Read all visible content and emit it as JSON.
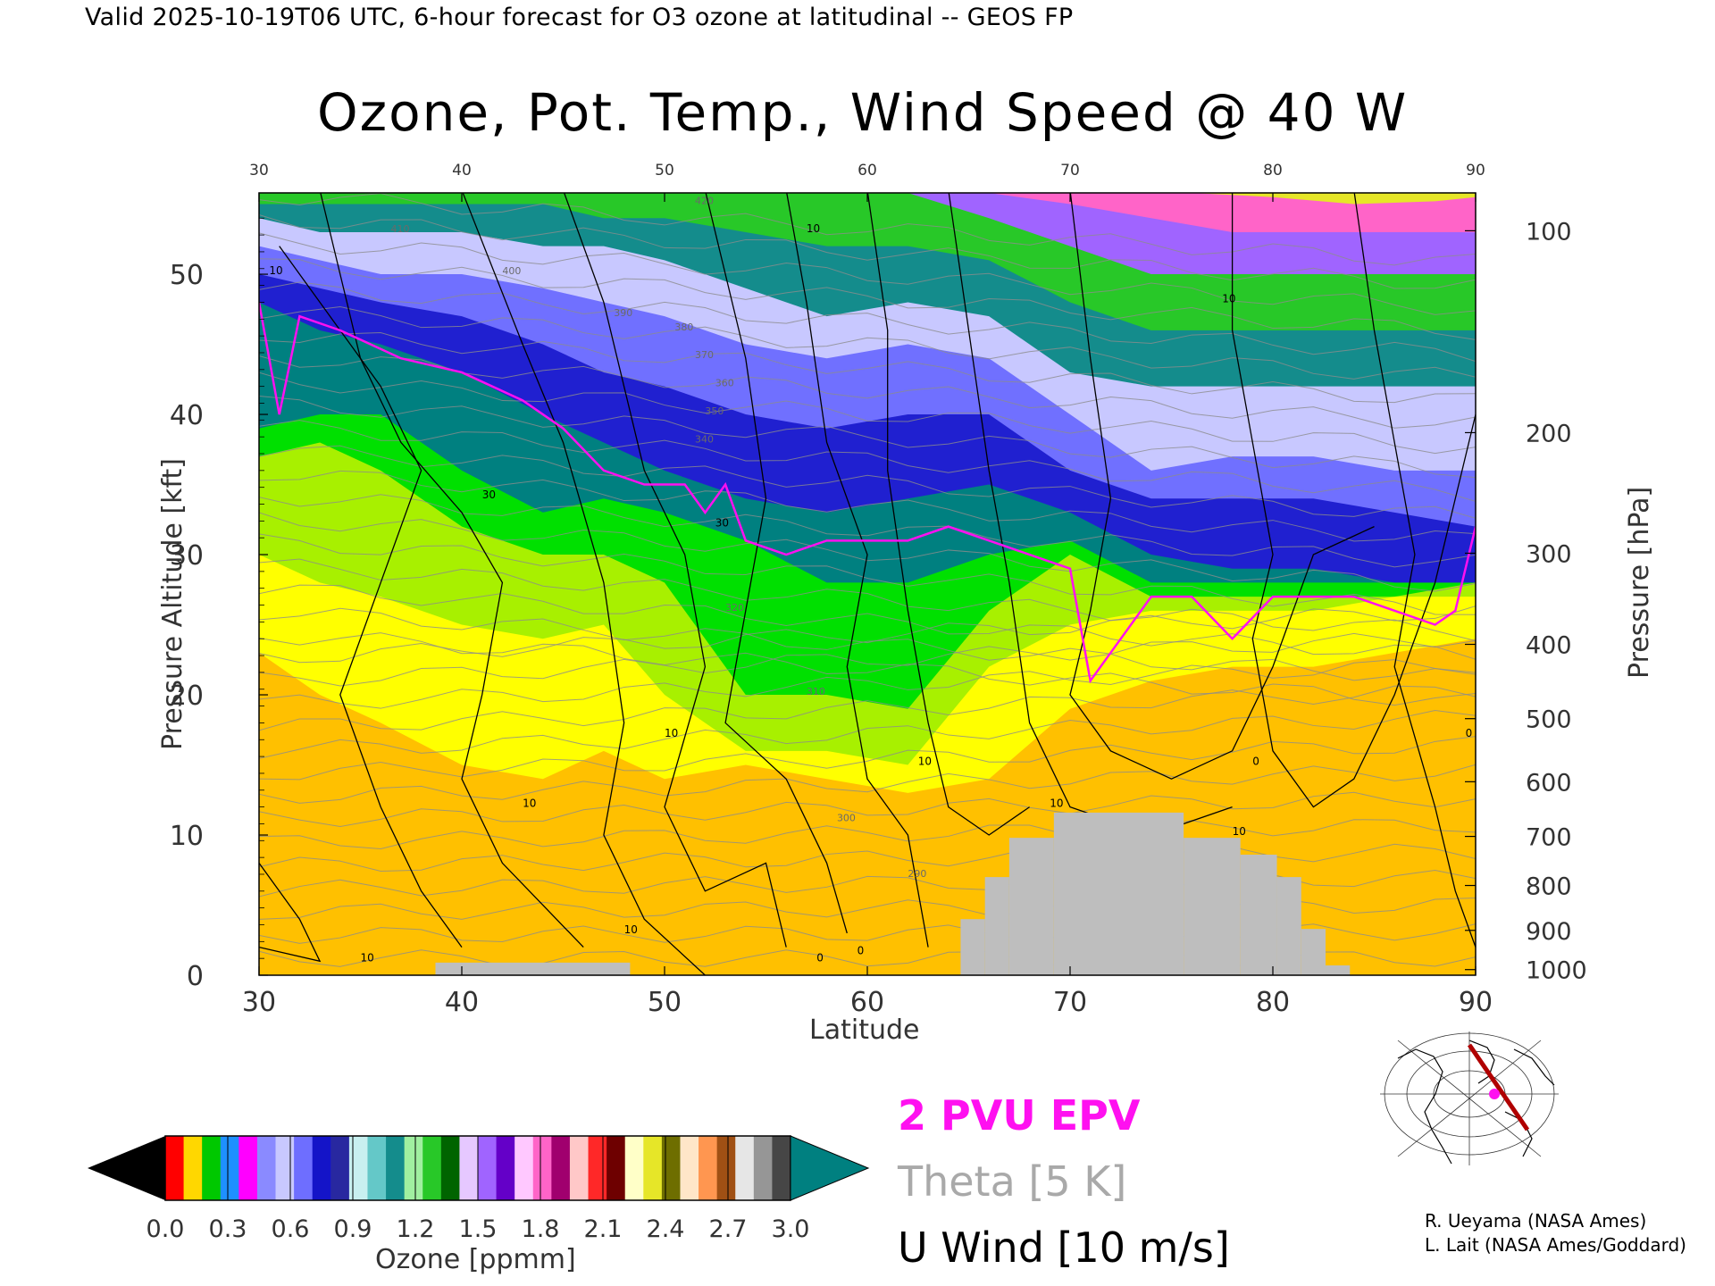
{
  "header": "Valid 2025-10-19T06 UTC, 6-hour forecast for O3 ozone at latitudinal -- GEOS FP",
  "credits": [
    "R. Ueyama (NASA Ames)",
    "L. Lait (NASA Ames/Goddard)"
  ],
  "legend": {
    "pvu": "2 PVU EPV",
    "theta": "Theta [5 K]",
    "uwind": "U Wind [10 m/s]",
    "pvu_color": "#ff10f0",
    "theta_color": "#a9a9a9",
    "uwind_color": "#000000"
  },
  "colorbar": {
    "label": "Ozone [ppmm]",
    "ticks": [
      "0.0",
      "0.3",
      "0.6",
      "0.9",
      "1.2",
      "1.5",
      "1.8",
      "2.1",
      "2.4",
      "2.7",
      "3.0"
    ],
    "range": [
      0,
      3.0
    ],
    "extend_low_color": "#000000",
    "extend_high_color": "#008080",
    "bands": [
      "#ff0000",
      "#ffd700",
      "#00c800",
      "#1e90ff",
      "#ff00ff",
      "#8a8aff",
      "#c8c8ff",
      "#6e6eff",
      "#1414c8",
      "#2828a0",
      "#c8f0f0",
      "#64c8c8",
      "#148c8c",
      "#a0f0a0",
      "#28c828",
      "#006400",
      "#e6c8ff",
      "#a064ff",
      "#6400c8",
      "#ffc8ff",
      "#ff64c8",
      "#a0006e",
      "#ffc8c8",
      "#ff2828",
      "#6e0000",
      "#ffffc8",
      "#e6e628",
      "#6e6e00",
      "#ffe6c8",
      "#ff9650",
      "#a05014",
      "#e6e6e6",
      "#969696",
      "#464646"
    ]
  },
  "chart_data": {
    "type": "heatmap",
    "title": "Ozone, Pot. Temp., Wind Speed @ 40 W",
    "xlabel": "Latitude",
    "ylabel": "Pressure Altitude [kft]",
    "y2label": "Pressure [hPa]",
    "xlim": [
      30,
      90
    ],
    "ylim": [
      0,
      55.8
    ],
    "x_ticks": [
      30,
      40,
      50,
      60,
      70,
      80,
      90
    ],
    "y_ticks": [
      0,
      10,
      20,
      30,
      40,
      50
    ],
    "pressure_ticks": [
      {
        "label": "100",
        "kft": 53.1
      },
      {
        "label": "200",
        "kft": 38.7
      },
      {
        "label": "300",
        "kft": 30.1
      },
      {
        "label": "400",
        "kft": 23.6
      },
      {
        "label": "500",
        "kft": 18.3
      },
      {
        "label": "600",
        "kft": 13.8
      },
      {
        "label": "700",
        "kft": 9.9
      },
      {
        "label": "800",
        "kft": 6.4
      },
      {
        "label": "900",
        "kft": 3.2
      },
      {
        "label": "1000",
        "kft": 0.4
      }
    ],
    "ozone_layers": [
      {
        "color": "#ffc000",
        "top": [
          [
            30,
            14
          ],
          [
            33,
            12
          ],
          [
            36,
            10
          ],
          [
            40,
            9
          ],
          [
            44,
            9
          ],
          [
            47,
            11
          ],
          [
            50,
            10
          ],
          [
            54,
            11
          ],
          [
            58,
            9
          ],
          [
            62,
            8
          ],
          [
            66,
            9
          ],
          [
            70,
            11
          ],
          [
            74,
            13
          ],
          [
            78,
            15
          ],
          [
            82,
            12
          ],
          [
            86,
            12
          ],
          [
            90,
            13
          ]
        ]
      },
      {
        "color": "#ffff00",
        "top": [
          [
            30,
            23
          ],
          [
            33,
            20
          ],
          [
            36,
            18
          ],
          [
            40,
            15
          ],
          [
            44,
            14
          ],
          [
            47,
            16
          ],
          [
            50,
            14
          ],
          [
            54,
            15
          ],
          [
            58,
            14
          ],
          [
            62,
            13
          ],
          [
            66,
            14
          ],
          [
            70,
            19
          ],
          [
            74,
            21
          ],
          [
            78,
            22
          ],
          [
            82,
            22
          ],
          [
            86,
            23
          ],
          [
            90,
            24
          ]
        ]
      },
      {
        "color": "#a8f000",
        "top": [
          [
            30,
            30
          ],
          [
            33,
            28
          ],
          [
            36,
            27
          ],
          [
            40,
            25
          ],
          [
            44,
            24
          ],
          [
            47,
            25
          ],
          [
            50,
            20
          ],
          [
            54,
            16
          ],
          [
            58,
            16
          ],
          [
            62,
            15
          ],
          [
            66,
            22
          ],
          [
            70,
            25
          ],
          [
            74,
            26
          ],
          [
            78,
            26
          ],
          [
            82,
            26
          ],
          [
            86,
            27
          ],
          [
            90,
            27
          ]
        ]
      },
      {
        "color": "#00e000",
        "top": [
          [
            30,
            37
          ],
          [
            33,
            38
          ],
          [
            36,
            36
          ],
          [
            40,
            32
          ],
          [
            44,
            30
          ],
          [
            47,
            30
          ],
          [
            50,
            28
          ],
          [
            54,
            20
          ],
          [
            58,
            20
          ],
          [
            62,
            19
          ],
          [
            66,
            26
          ],
          [
            70,
            30
          ],
          [
            74,
            27
          ],
          [
            78,
            27
          ],
          [
            82,
            27
          ],
          [
            86,
            27
          ],
          [
            90,
            28
          ]
        ]
      },
      {
        "color": "#008080",
        "top": [
          [
            30,
            39
          ],
          [
            33,
            40
          ],
          [
            36,
            40
          ],
          [
            40,
            36
          ],
          [
            44,
            33
          ],
          [
            47,
            34
          ],
          [
            50,
            33
          ],
          [
            54,
            31
          ],
          [
            58,
            28
          ],
          [
            62,
            28
          ],
          [
            66,
            30
          ],
          [
            70,
            31
          ],
          [
            74,
            28
          ],
          [
            78,
            28
          ],
          [
            82,
            28
          ],
          [
            86,
            28
          ],
          [
            90,
            28
          ]
        ]
      },
      {
        "color": "#2020d0",
        "top": [
          [
            30,
            48
          ],
          [
            33,
            46
          ],
          [
            36,
            45
          ],
          [
            40,
            43
          ],
          [
            44,
            40
          ],
          [
            47,
            38
          ],
          [
            50,
            36
          ],
          [
            54,
            34
          ],
          [
            58,
            33
          ],
          [
            62,
            34
          ],
          [
            66,
            35
          ],
          [
            70,
            33
          ],
          [
            74,
            30
          ],
          [
            78,
            29
          ],
          [
            82,
            29
          ],
          [
            86,
            28
          ],
          [
            90,
            28
          ]
        ]
      },
      {
        "color": "#7070ff",
        "top": [
          [
            30,
            50
          ],
          [
            33,
            49
          ],
          [
            36,
            48
          ],
          [
            40,
            47
          ],
          [
            44,
            45
          ],
          [
            47,
            43
          ],
          [
            50,
            42
          ],
          [
            54,
            40
          ],
          [
            58,
            39
          ],
          [
            62,
            40
          ],
          [
            66,
            40
          ],
          [
            70,
            36
          ],
          [
            74,
            34
          ],
          [
            78,
            34
          ],
          [
            82,
            34
          ],
          [
            86,
            33
          ],
          [
            90,
            32
          ]
        ]
      },
      {
        "color": "#c8c8ff",
        "top": [
          [
            30,
            52
          ],
          [
            33,
            51
          ],
          [
            36,
            50
          ],
          [
            40,
            50
          ],
          [
            44,
            49
          ],
          [
            47,
            48
          ],
          [
            50,
            47
          ],
          [
            54,
            45
          ],
          [
            58,
            44
          ],
          [
            62,
            45
          ],
          [
            66,
            44
          ],
          [
            70,
            40
          ],
          [
            74,
            36
          ],
          [
            78,
            37
          ],
          [
            82,
            37
          ],
          [
            86,
            36
          ],
          [
            90,
            36
          ]
        ]
      },
      {
        "color": "#148c8c",
        "top": [
          [
            30,
            54
          ],
          [
            33,
            53
          ],
          [
            36,
            53
          ],
          [
            40,
            53
          ],
          [
            44,
            52
          ],
          [
            47,
            52
          ],
          [
            50,
            51
          ],
          [
            54,
            49
          ],
          [
            58,
            47
          ],
          [
            62,
            48
          ],
          [
            66,
            47
          ],
          [
            70,
            43
          ],
          [
            74,
            42
          ],
          [
            78,
            42
          ],
          [
            82,
            42
          ],
          [
            86,
            42
          ],
          [
            90,
            42
          ]
        ]
      },
      {
        "color": "#28c828",
        "top": [
          [
            30,
            55
          ],
          [
            33,
            55
          ],
          [
            36,
            55
          ],
          [
            40,
            55
          ],
          [
            44,
            55
          ],
          [
            47,
            54
          ],
          [
            50,
            54
          ],
          [
            54,
            53
          ],
          [
            58,
            52
          ],
          [
            62,
            52
          ],
          [
            66,
            51
          ],
          [
            70,
            48
          ],
          [
            74,
            46
          ],
          [
            78,
            46
          ],
          [
            82,
            46
          ],
          [
            86,
            46
          ],
          [
            90,
            46
          ]
        ]
      },
      {
        "color": "#a064ff",
        "top": [
          [
            62,
            55.8
          ],
          [
            66,
            54
          ],
          [
            70,
            52
          ],
          [
            74,
            50
          ],
          [
            78,
            50
          ],
          [
            82,
            50
          ],
          [
            86,
            50
          ],
          [
            90,
            50
          ]
        ]
      },
      {
        "color": "#ff64c8",
        "top": [
          [
            66,
            55.8
          ],
          [
            70,
            55
          ],
          [
            74,
            54
          ],
          [
            78,
            53
          ],
          [
            82,
            53
          ],
          [
            86,
            53
          ],
          [
            90,
            53
          ]
        ]
      },
      {
        "color": "#e6e628",
        "top": [
          [
            76,
            55.8
          ],
          [
            80,
            55.5
          ],
          [
            84,
            55
          ],
          [
            88,
            55.2
          ],
          [
            90,
            55.5
          ]
        ]
      }
    ],
    "terrain_blocks": [
      {
        "x": [
          38.7,
          48.3
        ],
        "top": 0.9
      },
      {
        "x": [
          64.6,
          65.8
        ],
        "top": 4.0
      },
      {
        "x": [
          65.8,
          67.0
        ],
        "top": 7.0
      },
      {
        "x": [
          67.0,
          69.2
        ],
        "top": 9.8
      },
      {
        "x": [
          69.2,
          75.6
        ],
        "top": 11.6
      },
      {
        "x": [
          75.6,
          78.4
        ],
        "top": 9.8
      },
      {
        "x": [
          78.4,
          80.2
        ],
        "top": 8.6
      },
      {
        "x": [
          80.2,
          81.4
        ],
        "top": 7.0
      },
      {
        "x": [
          81.4,
          82.6
        ],
        "top": 3.3
      },
      {
        "x": [
          82.6,
          83.8
        ],
        "top": 0.7
      }
    ],
    "epv_2pvu": [
      [
        30,
        48
      ],
      [
        31,
        40
      ],
      [
        32,
        47
      ],
      [
        34,
        46
      ],
      [
        37,
        44
      ],
      [
        40,
        43
      ],
      [
        43,
        41
      ],
      [
        45,
        39
      ],
      [
        47,
        36
      ],
      [
        49,
        35
      ],
      [
        51,
        35
      ],
      [
        52,
        33
      ],
      [
        53,
        35
      ],
      [
        54,
        31
      ],
      [
        56,
        30
      ],
      [
        58,
        31
      ],
      [
        60,
        31
      ],
      [
        62,
        31
      ],
      [
        64,
        32
      ],
      [
        66,
        31
      ],
      [
        68,
        30
      ],
      [
        70,
        29
      ],
      [
        71,
        21
      ],
      [
        72,
        23
      ],
      [
        74,
        27
      ],
      [
        76,
        27
      ],
      [
        78,
        24
      ],
      [
        80,
        27
      ],
      [
        82,
        27
      ],
      [
        84,
        27
      ],
      [
        86,
        26
      ],
      [
        88,
        25
      ],
      [
        89,
        26
      ],
      [
        90,
        32
      ]
    ],
    "theta_labels": [
      {
        "x": 36.5,
        "y": 53,
        "text": "410"
      },
      {
        "x": 42.0,
        "y": 50,
        "text": "400"
      },
      {
        "x": 47.5,
        "y": 47,
        "text": "390"
      },
      {
        "x": 50.5,
        "y": 46,
        "text": "380"
      },
      {
        "x": 51.5,
        "y": 44,
        "text": "370"
      },
      {
        "x": 52.5,
        "y": 42,
        "text": "360"
      },
      {
        "x": 52.0,
        "y": 40,
        "text": "350"
      },
      {
        "x": 51.5,
        "y": 38,
        "text": "340"
      },
      {
        "x": 53.0,
        "y": 26,
        "text": "320"
      },
      {
        "x": 57.0,
        "y": 20,
        "text": "310"
      },
      {
        "x": 58.5,
        "y": 11,
        "text": "300"
      },
      {
        "x": 62.0,
        "y": 7,
        "text": "290"
      },
      {
        "x": 51.5,
        "y": 55,
        "text": "420"
      }
    ],
    "uwind_labels": [
      {
        "x": 30.5,
        "y": 50,
        "text": "10"
      },
      {
        "x": 41.0,
        "y": 34,
        "text": "30"
      },
      {
        "x": 43.0,
        "y": 12,
        "text": "10"
      },
      {
        "x": 52.5,
        "y": 32,
        "text": "30"
      },
      {
        "x": 50.0,
        "y": 17,
        "text": "10"
      },
      {
        "x": 57.0,
        "y": 53,
        "text": "10"
      },
      {
        "x": 62.5,
        "y": 15,
        "text": "10"
      },
      {
        "x": 69.0,
        "y": 12,
        "text": "10"
      },
      {
        "x": 78.0,
        "y": 10,
        "text": "10"
      },
      {
        "x": 48.0,
        "y": 3,
        "text": "10"
      },
      {
        "x": 35.0,
        "y": 1,
        "text": "10"
      },
      {
        "x": 77.5,
        "y": 48,
        "text": "10"
      },
      {
        "x": 79.0,
        "y": 15,
        "text": "0"
      },
      {
        "x": 89.5,
        "y": 17,
        "text": "0"
      },
      {
        "x": 59.5,
        "y": 1.5,
        "text": "0"
      },
      {
        "x": 57.5,
        "y": 1,
        "text": "0"
      }
    ]
  }
}
